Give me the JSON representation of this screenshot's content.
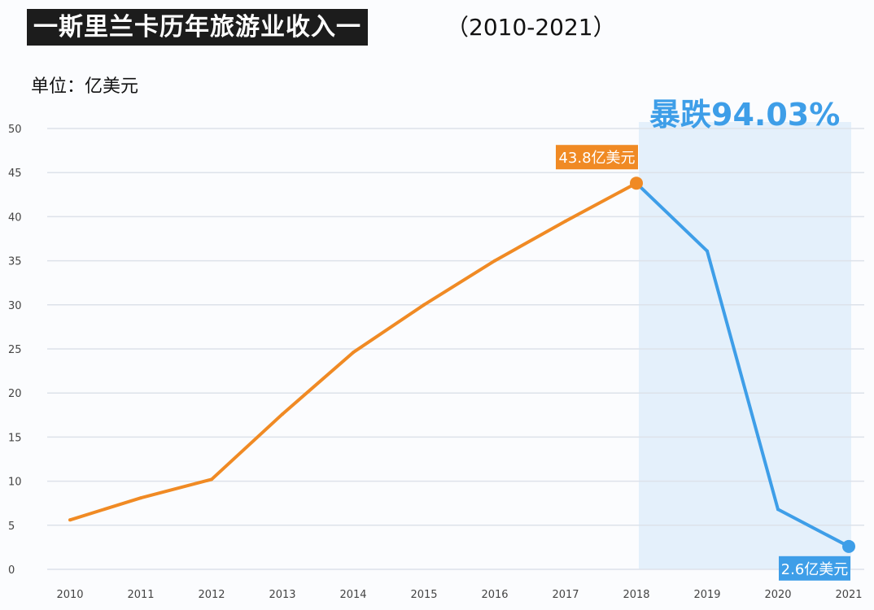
{
  "title": "一斯里兰卡历年旅游业收入一",
  "subtitle": "（2010-2021）",
  "unit_label": "单位：亿美元",
  "callout": "暴跌94.03%",
  "colors": {
    "rise": "#f08a24",
    "fall": "#3e9ee8",
    "highlight_band": "#e4f0fb"
  },
  "chart_data": {
    "type": "line",
    "title": "一斯里兰卡历年旅游业收入一",
    "ylabel": "单位：亿美元",
    "ylim": [
      0,
      50
    ],
    "yticks": [
      "0",
      "5",
      "10",
      "15",
      "20",
      "25",
      "30",
      "35",
      "40",
      "45",
      "50"
    ],
    "grid": true,
    "categories": [
      "2010",
      "2011",
      "2012",
      "2013",
      "2014",
      "2015",
      "2016",
      "2017",
      "2018",
      "2019",
      "2020",
      "2021"
    ],
    "values": [
      5.6,
      8.1,
      10.2,
      17.6,
      24.6,
      30.0,
      35.0,
      39.5,
      43.8,
      36.1,
      6.8,
      2.6
    ],
    "segments": [
      {
        "from": "2010",
        "to": "2018",
        "color": "#f08a24"
      },
      {
        "from": "2018",
        "to": "2021",
        "color": "#3e9ee8"
      }
    ],
    "highlight_range": [
      "2018",
      "2021"
    ],
    "annotations": [
      {
        "category": "2018",
        "text": "43.8亿美元",
        "color": "#f08a24"
      },
      {
        "category": "2021",
        "text": "2.6亿美元",
        "color": "#3e9ee8"
      }
    ]
  }
}
